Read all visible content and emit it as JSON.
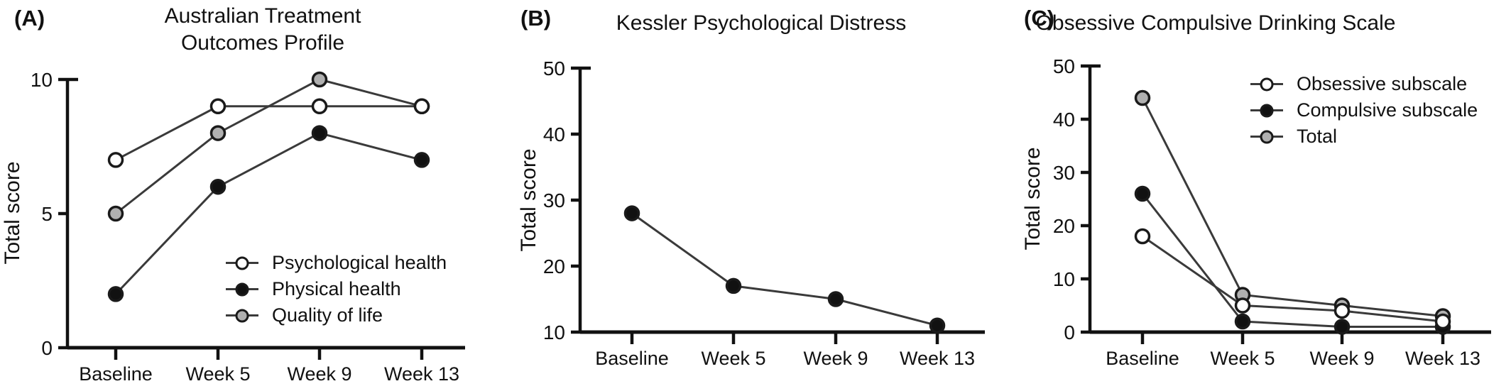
{
  "figure_ylabel": "Total score",
  "colors": {
    "line": "#3a3a3a",
    "axis": "#111111",
    "marker_stroke": "#1a1a1a",
    "marker_black_fill": "#111111",
    "marker_gray_fill": "#b0b0b0",
    "marker_open_fill": "#ffffff",
    "text": "#111111"
  },
  "chart_data": [
    {
      "type": "line",
      "panel_label": "(A)",
      "title_lines": [
        "Australian Treatment",
        "Outcomes Profile"
      ],
      "ylabel": "Total score",
      "xlabel": "",
      "categories": [
        "Baseline",
        "Week 5",
        "Week 9",
        "Week 13"
      ],
      "ylim": [
        0,
        10
      ],
      "yticks": [
        0,
        5,
        10
      ],
      "grid": "off",
      "legend_position": "inside-bottom-right",
      "series": [
        {
          "name": "Psychological health",
          "marker": "open",
          "values": [
            7,
            9,
            9,
            9
          ]
        },
        {
          "name": "Physical health",
          "marker": "filled",
          "values": [
            2,
            6,
            8,
            7
          ]
        },
        {
          "name": "Quality of life",
          "marker": "gray",
          "values": [
            5,
            8,
            10,
            9
          ]
        }
      ]
    },
    {
      "type": "line",
      "panel_label": "(B)",
      "title_lines": [
        "Kessler Psychological Distress"
      ],
      "ylabel": "Total score",
      "xlabel": "",
      "categories": [
        "Baseline",
        "Week 5",
        "Week 9",
        "Week 13"
      ],
      "ylim": [
        10,
        50
      ],
      "yticks": [
        10,
        20,
        30,
        40,
        50
      ],
      "grid": "off",
      "legend_position": "none",
      "series": [
        {
          "name": "Total score",
          "marker": "filled",
          "values": [
            28,
            17,
            15,
            11
          ]
        }
      ]
    },
    {
      "type": "line",
      "panel_label": "(C)",
      "title_lines": [
        "Obsessive Compulsive Drinking Scale"
      ],
      "ylabel": "Total score",
      "xlabel": "",
      "categories": [
        "Baseline",
        "Week 5",
        "Week 9",
        "Week 13"
      ],
      "ylim": [
        0,
        50
      ],
      "yticks": [
        0,
        10,
        20,
        30,
        40,
        50
      ],
      "grid": "off",
      "legend_position": "inside-top-right",
      "series": [
        {
          "name": "Obsessive subscale",
          "marker": "open",
          "values": [
            18,
            5,
            4,
            2
          ]
        },
        {
          "name": "Compulsive subscale",
          "marker": "filled",
          "values": [
            26,
            2,
            1,
            1
          ]
        },
        {
          "name": "Total",
          "marker": "gray",
          "values": [
            44,
            7,
            5,
            3
          ]
        }
      ]
    }
  ]
}
